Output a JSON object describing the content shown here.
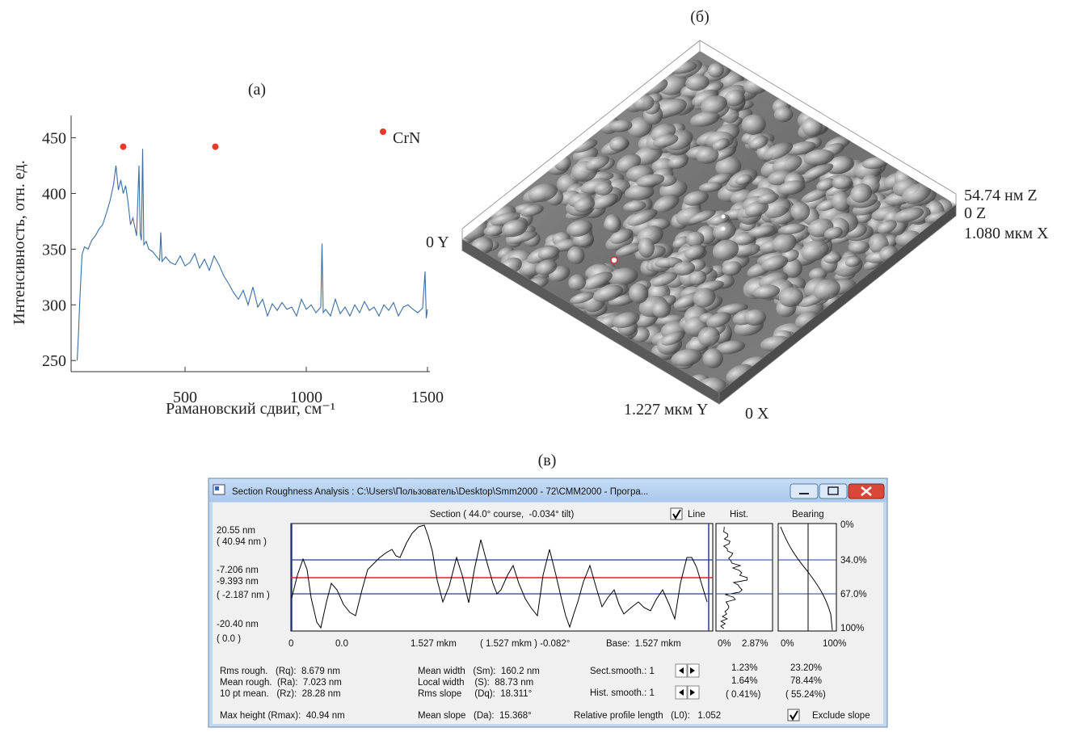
{
  "chart_data": {
    "type": "line",
    "title": "(a)",
    "x_label": "Рамановский сдвиг, см⁻¹",
    "y_label": "Интенсивность, отн. ед.",
    "x": [
      55,
      60,
      65,
      75,
      85,
      100,
      115,
      130,
      145,
      160,
      175,
      190,
      205,
      215,
      225,
      235,
      245,
      255,
      265,
      275,
      285,
      300,
      310,
      315,
      320,
      325,
      330,
      340,
      350,
      365,
      380,
      395,
      400,
      405,
      420,
      440,
      460,
      480,
      500,
      520,
      540,
      560,
      580,
      600,
      620,
      640,
      660,
      680,
      700,
      720,
      740,
      760,
      780,
      800,
      820,
      840,
      860,
      880,
      900,
      920,
      940,
      960,
      980,
      1000,
      1020,
      1040,
      1060,
      1065,
      1070,
      1080,
      1100,
      1120,
      1140,
      1160,
      1180,
      1200,
      1220,
      1240,
      1260,
      1280,
      1300,
      1320,
      1340,
      1360,
      1380,
      1400,
      1420,
      1440,
      1460,
      1480,
      1490,
      1495,
      1500
    ],
    "values": [
      250,
      272,
      300,
      345,
      352,
      350,
      358,
      362,
      368,
      372,
      382,
      393,
      408,
      425,
      403,
      412,
      400,
      407,
      392,
      372,
      378,
      362,
      425,
      364,
      358,
      440,
      354,
      357,
      350,
      348,
      344,
      340,
      365,
      339,
      343,
      338,
      336,
      344,
      335,
      338,
      346,
      333,
      341,
      331,
      344,
      336,
      326,
      319,
      311,
      305,
      313,
      300,
      316,
      298,
      305,
      290,
      301,
      295,
      302,
      296,
      298,
      290,
      305,
      296,
      300,
      293,
      298,
      355,
      293,
      296,
      290,
      305,
      292,
      298,
      290,
      300,
      293,
      303,
      295,
      298,
      290,
      300,
      295,
      302,
      290,
      298,
      300,
      296,
      293,
      297,
      330,
      288,
      296
    ],
    "color": "#3a6ea5",
    "markers": {
      "name": "CrN",
      "color": "#e8392a",
      "x": [
        245,
        625
      ],
      "values": [
        442,
        442
      ]
    },
    "xlim": [
      30,
      1510
    ],
    "xticks": [
      500,
      1000,
      1500
    ],
    "ylim": [
      240,
      470
    ],
    "yticks": [
      250,
      300,
      350,
      400,
      450
    ]
  },
  "panel_b": {
    "title": "(б)",
    "z_top": "54.74 нм Z",
    "z_zero": "0 Z",
    "x_end": "1.080 мкм X",
    "y_zero": "0 Y",
    "y_end": "1.227 мкм Y",
    "x_zero": "0 X"
  },
  "panel_c": {
    "title": "(в)",
    "window_title": "Section Roughness Analysis : C:\\Users\\Пользователь\\Desktop\\Smm2000 - 72\\CMM2000 - Програ...",
    "section_header": "Section ( 44.0° course,  -0.034° tilt)",
    "line_check": "Line",
    "hist": "Hist.",
    "bearing": "Bearing",
    "left_labels": [
      "20.55 nm",
      "( 40.94 nm )",
      "-7.206 nm",
      "-9.393 nm",
      "( -2.187 nm )",
      "-20.40 nm",
      "( 0.0 )"
    ],
    "bottom_labels": [
      "0",
      "0.0",
      "1.527 mkm",
      "( 1.527 mkm ) -0.082°",
      "Base:  1.527 mkm"
    ],
    "hist_axis": [
      "0%",
      "2.87%"
    ],
    "bearing_axis": [
      "0%",
      "100%"
    ],
    "bearing_levels": [
      "0%",
      "34.0%",
      "67.0%",
      "100%"
    ],
    "stats_left": [
      "Rms rough.   (Rq):  8.679 nm",
      "Mean rough.  (Ra):  7.023 nm",
      "10 pt mean.   (Rz):  28.28 nm",
      "Max height (Rmax):  40.94 nm"
    ],
    "stats_mid": [
      "Mean width   (Sm):  160.2 nm",
      "Local width    (S):  88.73 nm",
      "Rms slope     (Dq):  18.311°",
      "Mean slope   (Da):  15.368°"
    ],
    "sect_smooth": "Sect.smooth.: 1",
    "hist_smooth": "Hist. smooth.: 1",
    "rel_length": "Relative profile length   (L0):   1.052",
    "hist_stats": [
      "1.23%",
      "1.64%",
      "( 0.41%)"
    ],
    "bearing_stats": [
      "23.20%",
      "78.44%",
      "( 55.24%)"
    ],
    "exclude_slope": "Exclude slope"
  }
}
